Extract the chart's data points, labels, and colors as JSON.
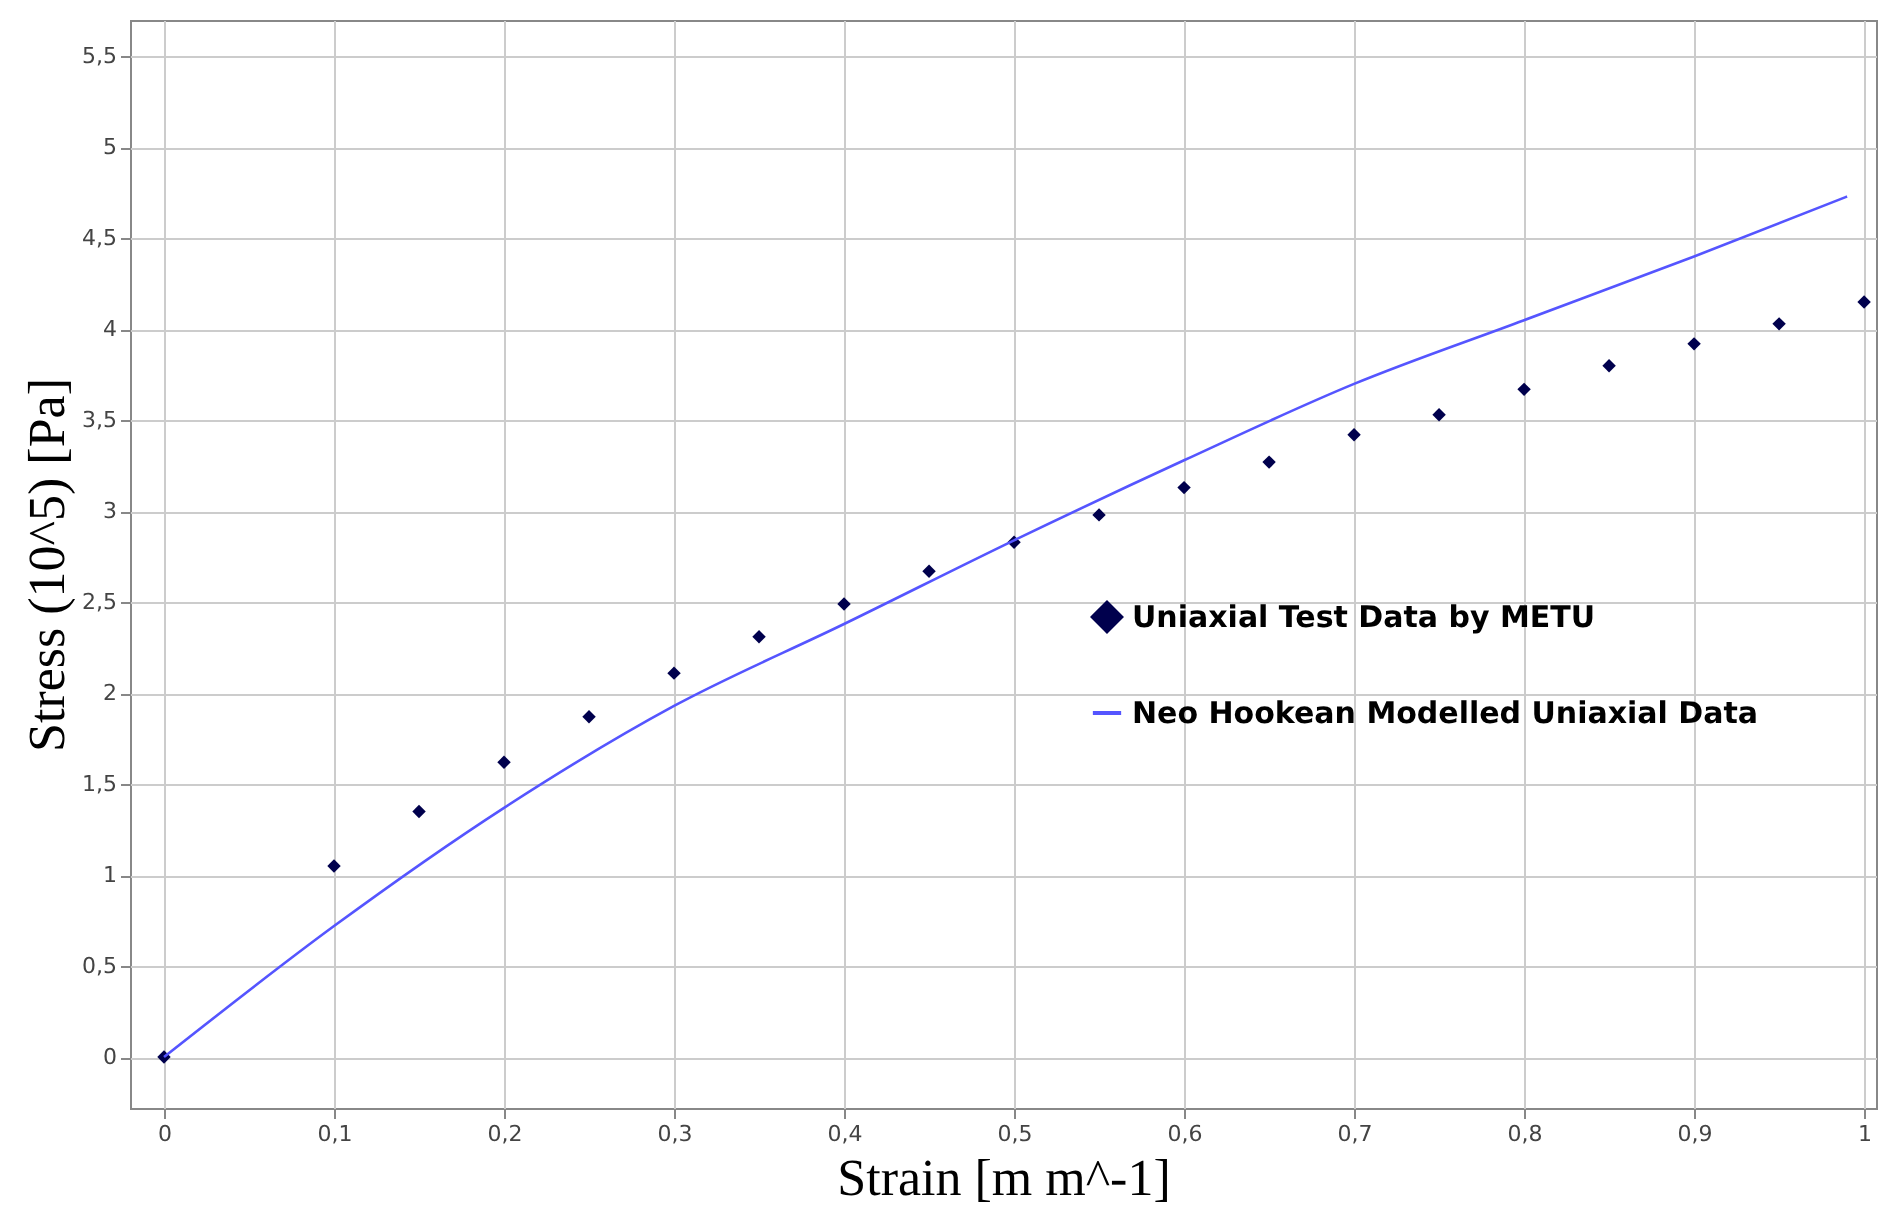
{
  "chart_data": {
    "type": "scatter",
    "xlabel": "Strain [m m^-1]",
    "ylabel": "Stress (10^5) [Pa]",
    "xlim": [
      -0.02,
      1.007
    ],
    "ylim": [
      -0.28,
      5.7
    ],
    "xticks": [
      0,
      {
        "value": 0.1,
        "label": "0,1"
      },
      {
        "value": 0.2,
        "label": "0,2"
      },
      {
        "value": 0.3,
        "label": "0,3"
      },
      {
        "value": 0.4,
        "label": "0,4"
      },
      {
        "value": 0.5,
        "label": "0,5"
      },
      {
        "value": 0.6,
        "label": "0,6"
      },
      {
        "value": 0.7,
        "label": "0,7"
      },
      {
        "value": 0.8,
        "label": "0,8"
      },
      {
        "value": 0.9,
        "label": "0,9"
      },
      1
    ],
    "yticks": [
      0,
      {
        "value": 0.5,
        "label": "0,5"
      },
      1,
      {
        "value": 1.5,
        "label": "1,5"
      },
      2,
      {
        "value": 2.5,
        "label": "2,5"
      },
      3,
      {
        "value": 3.5,
        "label": "3,5"
      },
      4,
      {
        "value": 4.5,
        "label": "4,5"
      },
      5,
      {
        "value": 5.5,
        "label": "5,5"
      }
    ],
    "grid": true,
    "legend": "right",
    "series": [
      {
        "name": "Uniaxial Test Data by METU",
        "marker": "diamond",
        "color": "#00004d",
        "x": [
          0,
          0.1,
          0.15,
          0.2,
          0.25,
          0.3,
          0.35,
          0.4,
          0.45,
          0.5,
          0.55,
          0.6,
          0.65,
          0.7,
          0.75,
          0.8,
          0.85,
          0.9,
          0.95,
          1.0
        ],
        "values": [
          0,
          1.05,
          1.35,
          1.62,
          1.87,
          2.11,
          2.31,
          2.49,
          2.67,
          2.83,
          2.98,
          3.13,
          3.27,
          3.42,
          3.53,
          3.67,
          3.8,
          3.92,
          4.03,
          4.15
        ]
      },
      {
        "name": "Neo Hookean Modelled Uniaxial Data",
        "type": "line",
        "color": "#5555ff",
        "x": [
          0,
          0.1,
          0.2,
          0.3,
          0.4,
          0.5,
          0.6,
          0.7,
          0.8,
          0.9,
          0.99
        ],
        "values": [
          0,
          0.72,
          1.37,
          1.93,
          2.38,
          2.84,
          3.28,
          3.7,
          4.05,
          4.4,
          4.73
        ]
      }
    ]
  }
}
